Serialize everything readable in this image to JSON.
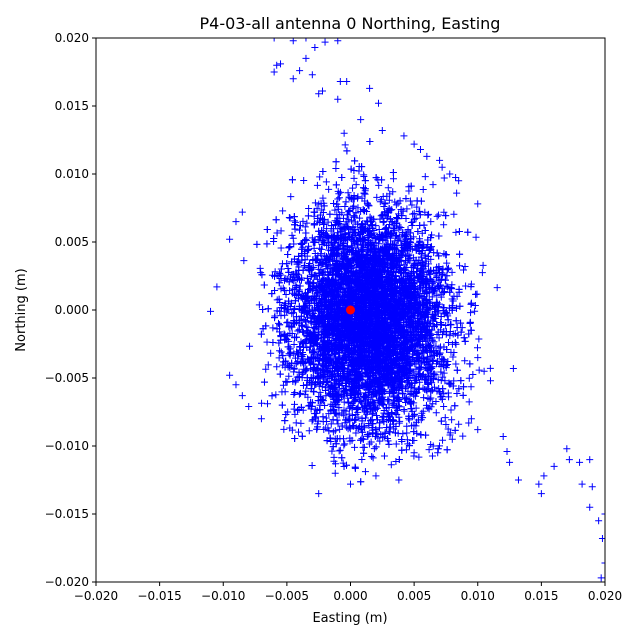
{
  "chart_data": {
    "type": "scatter",
    "title": "P4-03-all antenna 0 Northing, Easting",
    "xlabel": "Easting (m)",
    "ylabel": "Northing (m)",
    "xlim": [
      -0.02,
      0.02
    ],
    "ylim": [
      -0.02,
      0.02
    ],
    "xticks": [
      -0.02,
      -0.015,
      -0.01,
      -0.005,
      0.0,
      0.005,
      0.01,
      0.015,
      0.02
    ],
    "yticks": [
      -0.02,
      -0.015,
      -0.01,
      -0.005,
      0.0,
      0.005,
      0.01,
      0.015,
      0.02
    ],
    "xtick_labels": [
      "−0.020",
      "−0.015",
      "−0.010",
      "−0.005",
      "0.000",
      "0.005",
      "0.010",
      "0.015",
      "0.020"
    ],
    "ytick_labels": [
      "−0.020",
      "−0.015",
      "−0.010",
      "−0.005",
      "0.000",
      "0.005",
      "0.010",
      "0.015",
      "0.020"
    ],
    "grid": false,
    "series": [
      {
        "marker": "+",
        "color": "#0000ff",
        "cloud": {
          "center": [
            0.0015,
            -0.0005
          ],
          "extent_easting": [
            -0.011,
            0.01
          ],
          "extent_northing": [
            -0.0135,
            0.0135
          ],
          "approx_count": 8000
        },
        "points": [
          [
            -0.006,
            0.02
          ],
          [
            -0.0045,
            0.0198
          ],
          [
            -0.0035,
            0.02
          ],
          [
            -0.0028,
            0.0193
          ],
          [
            -0.002,
            0.0197
          ],
          [
            -0.001,
            0.0198
          ],
          [
            -0.0035,
            0.0185
          ],
          [
            -0.0058,
            0.018
          ],
          [
            -0.006,
            0.0175
          ],
          [
            -0.0055,
            0.0181
          ],
          [
            -0.004,
            0.0176
          ],
          [
            -0.003,
            0.0173
          ],
          [
            -0.0045,
            0.017
          ],
          [
            -0.0025,
            0.0159
          ],
          [
            -0.0022,
            0.0161
          ],
          [
            -0.001,
            0.0155
          ],
          [
            -0.0008,
            0.0168
          ],
          [
            -0.0003,
            0.0168
          ],
          [
            0.0015,
            0.0163
          ],
          [
            0.0022,
            0.0152
          ],
          [
            0.0008,
            0.014
          ],
          [
            -0.0005,
            0.013
          ],
          [
            0.0025,
            0.0132
          ],
          [
            0.0042,
            0.0128
          ],
          [
            0.005,
            0.0122
          ],
          [
            0.0055,
            0.0118
          ],
          [
            0.006,
            0.0113
          ],
          [
            0.007,
            0.011
          ],
          [
            0.0072,
            0.0105
          ],
          [
            0.0078,
            0.01
          ],
          [
            0.0085,
            0.0095
          ],
          [
            0.01,
            0.0078
          ],
          [
            -0.011,
            -0.0001
          ],
          [
            -0.0105,
            0.0017
          ],
          [
            -0.0095,
            0.0052
          ],
          [
            -0.009,
            0.0065
          ],
          [
            -0.0085,
            0.0072
          ],
          [
            -0.0095,
            -0.0048
          ],
          [
            -0.009,
            -0.0055
          ],
          [
            -0.0085,
            -0.0063
          ],
          [
            -0.008,
            -0.0071
          ],
          [
            -0.007,
            -0.008
          ],
          [
            0.0095,
            0.0019
          ],
          [
            0.009,
            0.0032
          ],
          [
            0.0095,
            -0.0015
          ],
          [
            0.01,
            -0.0035
          ],
          [
            0.0105,
            -0.0045
          ],
          [
            0.011,
            -0.0052
          ],
          [
            0.0128,
            -0.0043
          ],
          [
            0.0095,
            -0.008
          ],
          [
            0.01,
            -0.0088
          ],
          [
            0.0085,
            -0.0084
          ],
          [
            -0.0025,
            -0.0135
          ],
          [
            -0.0012,
            -0.012
          ],
          [
            0.0,
            -0.0128
          ],
          [
            0.002,
            -0.0122
          ],
          [
            0.0038,
            -0.0125
          ],
          [
            0.005,
            -0.0105
          ],
          [
            0.0065,
            -0.01
          ],
          [
            0.008,
            -0.0095
          ],
          [
            0.012,
            -0.0093
          ],
          [
            0.0123,
            -0.0104
          ],
          [
            0.0125,
            -0.0112
          ],
          [
            0.0132,
            -0.0125
          ],
          [
            0.0148,
            -0.0128
          ],
          [
            0.015,
            -0.0135
          ],
          [
            0.0152,
            -0.0122
          ],
          [
            0.016,
            -0.0115
          ],
          [
            0.017,
            -0.0102
          ],
          [
            0.0172,
            -0.011
          ],
          [
            0.018,
            -0.0112
          ],
          [
            0.0182,
            -0.0128
          ],
          [
            0.0188,
            -0.011
          ],
          [
            0.019,
            -0.013
          ],
          [
            0.0188,
            -0.0145
          ],
          [
            0.0195,
            -0.0155
          ],
          [
            0.02,
            -0.015
          ],
          [
            0.0198,
            -0.0168
          ],
          [
            0.02,
            -0.0186
          ],
          [
            0.0197,
            -0.0197
          ]
        ]
      },
      {
        "name": "",
        "marker": "o",
        "color": "#ff0000",
        "points": [
          [
            0.0,
            0.0
          ]
        ]
      }
    ]
  }
}
